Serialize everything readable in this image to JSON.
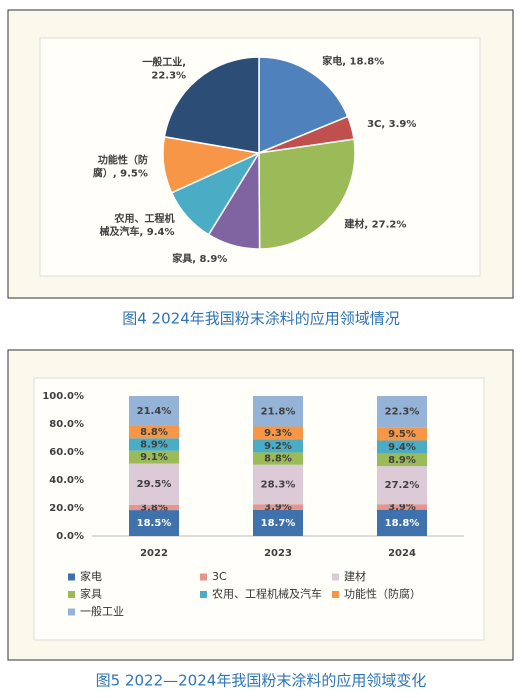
{
  "chart_data": [
    {
      "type": "pie",
      "title": "图4 2024年我国粉末涂料的应用领域情况",
      "values": [
        18.8,
        3.9,
        27.2,
        8.9,
        9.4,
        9.5,
        22.3
      ],
      "value_labels": [
        "家电, 18.8%",
        "3C, 3.9%",
        "建材, 27.2%",
        "家具, 8.9%",
        "农用、工程机\n械及汽车, 9.4%",
        "功能性（防\n腐）, 9.5%",
        "一般工业,\n22.3%"
      ],
      "colors": [
        "#4f81bd",
        "#c0504d",
        "#9bbb59",
        "#8064a2",
        "#4bacc6",
        "#f79646",
        "#2c4d75"
      ]
    },
    {
      "type": "stacked-bar",
      "title": "图5 2022—2024年我国粉末涂料的应用领域变化",
      "categories": [
        "2022",
        "2023",
        "2024"
      ],
      "ylim": [
        0,
        100
      ],
      "yticks": [
        {
          "value": 0,
          "label": "0.0%"
        },
        {
          "value": 20,
          "label": "20.0%"
        },
        {
          "value": 40,
          "label": "40.0%"
        },
        {
          "value": 60,
          "label": "60.0%"
        },
        {
          "value": 80,
          "label": "80.0%"
        },
        {
          "value": 100,
          "label": "100.0%"
        }
      ],
      "series": [
        {
          "name": "家电",
          "color": "#3f72ad",
          "values": [
            18.5,
            18.7,
            18.8
          ],
          "value_labels": [
            "18.5%",
            "18.7%",
            "18.8%"
          ]
        },
        {
          "name": "3C",
          "color": "#e3958e",
          "values": [
            3.8,
            3.9,
            3.9
          ],
          "value_labels": [
            "3.8%",
            "3.9%",
            "3.9%"
          ]
        },
        {
          "name": "建材",
          "color": "#dccbd6",
          "values": [
            29.5,
            28.3,
            27.2
          ],
          "value_labels": [
            "29.5%",
            "28.3%",
            "27.2%"
          ]
        },
        {
          "name": "家具",
          "color": "#9bbb59",
          "values": [
            9.1,
            8.8,
            8.9
          ],
          "value_labels": [
            "9.1%",
            "8.8%",
            "8.9%"
          ]
        },
        {
          "name": "农用、工程机械及汽车",
          "color": "#4bacc6",
          "values": [
            8.9,
            9.2,
            9.4
          ],
          "value_labels": [
            "8.9%",
            "9.2%",
            "9.4%"
          ]
        },
        {
          "name": "功能性（防腐）",
          "color": "#f79646",
          "values": [
            8.8,
            9.3,
            9.5
          ],
          "value_labels": [
            "8.8%",
            "9.3%",
            "9.5%"
          ]
        },
        {
          "name": "一般工业",
          "color": "#95b3d7",
          "values": [
            21.4,
            21.8,
            22.3
          ],
          "value_labels": [
            "21.4%",
            "21.8%",
            "22.3%"
          ]
        }
      ]
    }
  ]
}
